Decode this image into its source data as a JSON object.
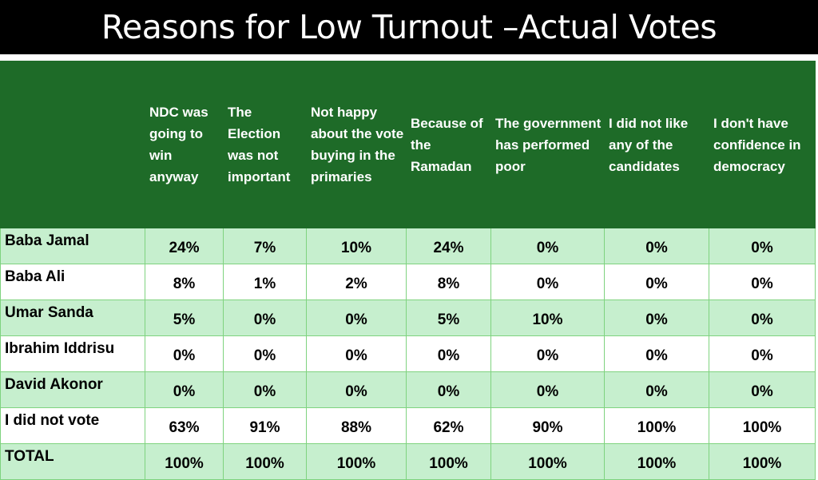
{
  "title": "Reasons for Low Turnout –Actual Votes",
  "columns": [
    "",
    "NDC was going to win anyway",
    "The Election was not important",
    "Not happy about the vote buying in the primaries",
    "Because of the Ramadan",
    "The government has performed poor",
    "I did not like any of the candidates",
    "I don't have confidence in democracy"
  ],
  "rows": [
    {
      "label": "Baba Jamal",
      "values": [
        "24%",
        "7%",
        "10%",
        "24%",
        "0%",
        "0%",
        "0%"
      ]
    },
    {
      "label": "Baba Ali",
      "values": [
        "8%",
        "1%",
        "2%",
        "8%",
        "0%",
        "0%",
        "0%"
      ]
    },
    {
      "label": "Umar Sanda",
      "values": [
        "5%",
        "0%",
        "0%",
        "5%",
        "10%",
        "0%",
        "0%"
      ]
    },
    {
      "label": "Ibrahim Iddrisu",
      "values": [
        "0%",
        "0%",
        "0%",
        "0%",
        "0%",
        "0%",
        "0%"
      ]
    },
    {
      "label": "David Akonor",
      "values": [
        "0%",
        "0%",
        "0%",
        "0%",
        "0%",
        "0%",
        "0%"
      ]
    },
    {
      "label": "I did not vote",
      "values": [
        "63%",
        "91%",
        "88%",
        "62%",
        "90%",
        "100%",
        "100%"
      ]
    },
    {
      "label": "TOTAL",
      "values": [
        "100%",
        "100%",
        "100%",
        "100%",
        "100%",
        "100%",
        "100%"
      ]
    }
  ],
  "colors": {
    "title_bg": "#000000",
    "header_bg": "#1e6b28",
    "band_light": "#c6efce",
    "band_white": "#ffffff",
    "border": "#7fd37f"
  }
}
